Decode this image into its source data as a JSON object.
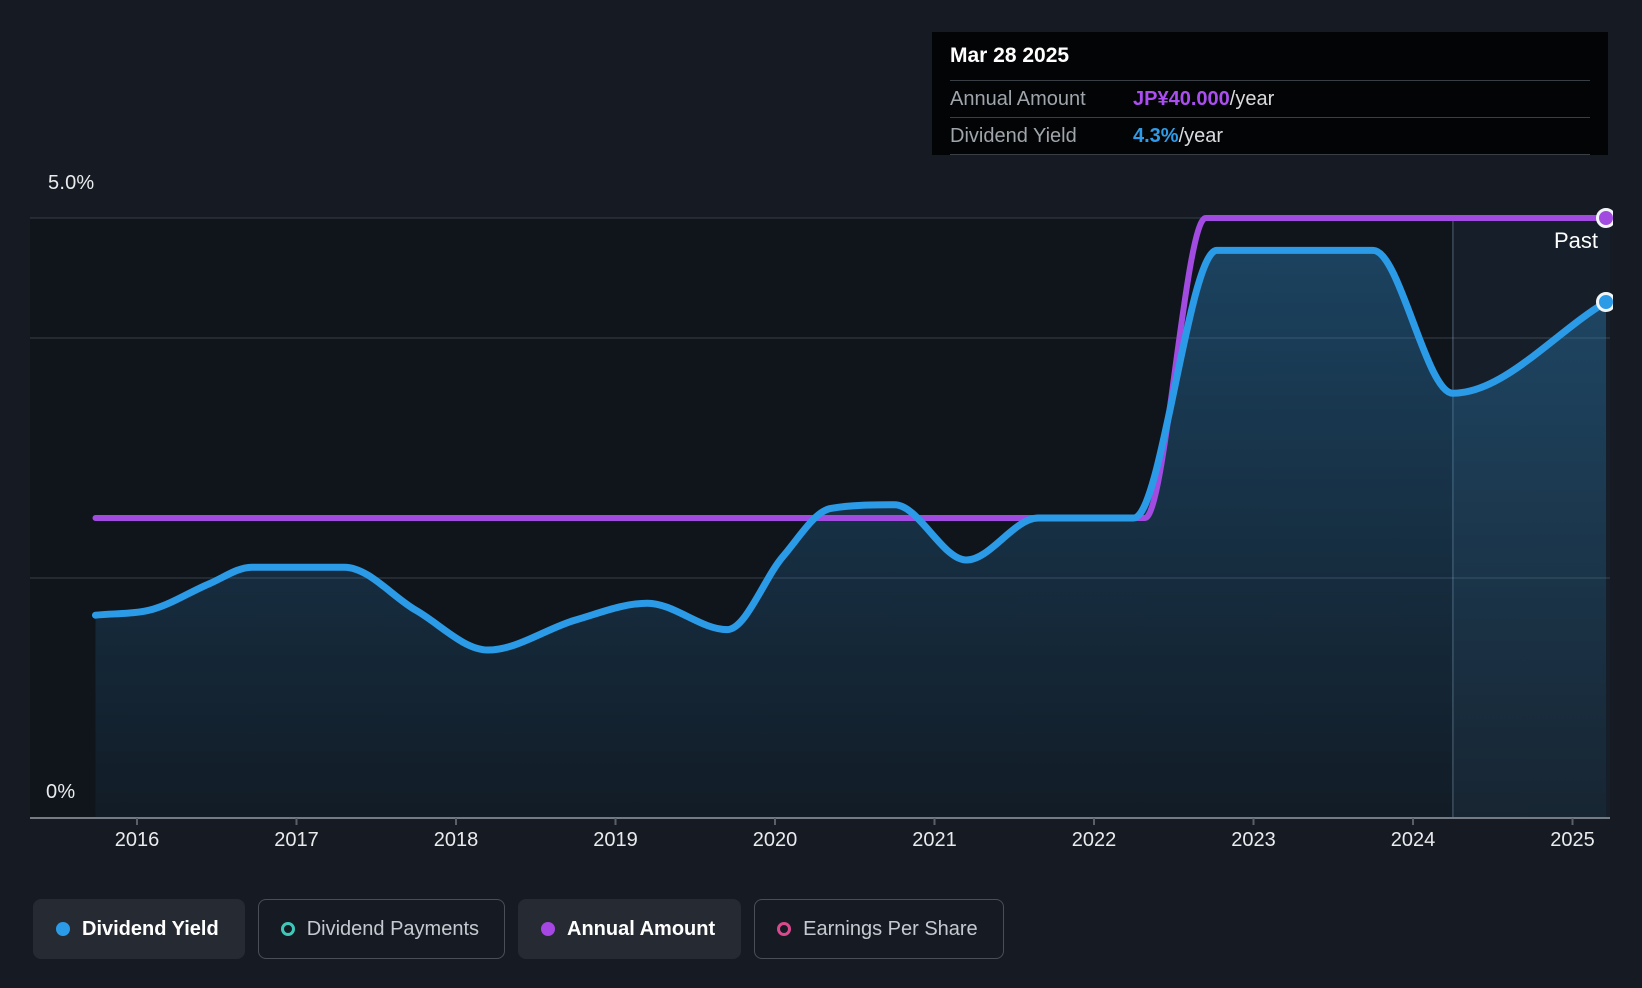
{
  "tooltip": {
    "date": "Mar 28 2025",
    "rows": [
      {
        "label": "Annual Amount",
        "value": "JP¥40.000",
        "suffix": "/year",
        "color": "#ab4ef0"
      },
      {
        "label": "Dividend Yield",
        "value": "4.3%",
        "suffix": "/year",
        "color": "#2f9be8"
      }
    ]
  },
  "labels": {
    "past": "Past",
    "y_top": "5.0%",
    "y_bottom": "0%"
  },
  "legend": [
    {
      "label": "Dividend Yield",
      "color": "#2b9be8",
      "style": "filled",
      "active": true
    },
    {
      "label": "Dividend Payments",
      "color": "#3fc8b9",
      "style": "ring",
      "active": false
    },
    {
      "label": "Annual Amount",
      "color": "#a647e3",
      "style": "filled",
      "active": true
    },
    {
      "label": "Earnings Per Share",
      "color": "#d9498e",
      "style": "ring",
      "active": false
    }
  ],
  "colors": {
    "background": "#161b23",
    "plot_background": "#10151c",
    "blue_line": "#2b9be8",
    "purple_line": "#a24be0",
    "gridline": "#2b313a",
    "axis_line": "#757b83",
    "tick": "#5a6068",
    "area_fill": "44,134,196",
    "past_overlay": "rgba(120,170,215,0.07)",
    "divider": "rgba(170,200,230,0.28)"
  },
  "chart_data": {
    "type": "area",
    "title": "Dividend history",
    "x_axis": {
      "ticks": [
        2016,
        2017,
        2018,
        2019,
        2020,
        2021,
        2022,
        2023,
        2024,
        2025
      ]
    },
    "y_axis": {
      "unit": "%",
      "range": [
        0,
        5
      ],
      "tick_labels": [
        {
          "pct": 5,
          "text": "5.0%"
        },
        {
          "pct": 0,
          "text": "0%"
        }
      ],
      "gridlines_pct": [
        5,
        4,
        2
      ],
      "axis_pct": 0
    },
    "series": [
      {
        "name": "Annual Amount",
        "kind": "line",
        "color": "#a24be0",
        "unit": "JP¥/year",
        "axis_max_value": 40,
        "end_marker": true,
        "points": [
          [
            2015.74,
            20
          ],
          [
            2022.32,
            20
          ],
          [
            2022.7,
            40
          ],
          [
            2025.21,
            40
          ]
        ]
      },
      {
        "name": "Dividend Yield",
        "kind": "area-line",
        "color": "#2b9be8",
        "unit": "%",
        "end_marker": true,
        "points": [
          [
            2015.74,
            1.69
          ],
          [
            2016.1,
            1.74
          ],
          [
            2016.45,
            1.95
          ],
          [
            2016.72,
            2.09
          ],
          [
            2017.3,
            2.09
          ],
          [
            2017.75,
            1.73
          ],
          [
            2018.2,
            1.4
          ],
          [
            2018.75,
            1.65
          ],
          [
            2019.2,
            1.79
          ],
          [
            2019.7,
            1.57
          ],
          [
            2020.05,
            2.18
          ],
          [
            2020.35,
            2.58
          ],
          [
            2020.75,
            2.61
          ],
          [
            2021.2,
            2.15
          ],
          [
            2021.65,
            2.5
          ],
          [
            2022.25,
            2.5
          ],
          [
            2022.77,
            4.73
          ],
          [
            2023.75,
            4.73
          ],
          [
            2024.25,
            3.54
          ],
          [
            2025.21,
            4.3
          ]
        ]
      }
    ],
    "past_divider_year": 2024.25,
    "past_label": "Past",
    "last_point": {
      "date": "Mar 28 2025",
      "dividend_yield_pct": 4.3,
      "annual_amount_jpy": 40
    }
  }
}
